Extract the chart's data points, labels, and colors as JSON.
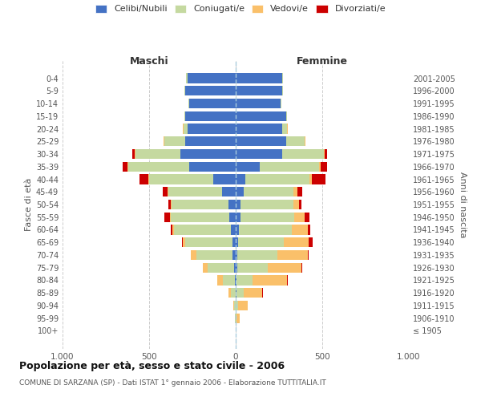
{
  "age_groups": [
    "0-4",
    "5-9",
    "10-14",
    "15-19",
    "20-24",
    "25-29",
    "30-34",
    "35-39",
    "40-44",
    "45-49",
    "50-54",
    "55-59",
    "60-64",
    "65-69",
    "70-74",
    "75-79",
    "80-84",
    "85-89",
    "90-94",
    "95-99",
    "100+"
  ],
  "birth_years": [
    "2001-2005",
    "1996-2000",
    "1991-1995",
    "1986-1990",
    "1981-1985",
    "1976-1980",
    "1971-1975",
    "1966-1970",
    "1961-1965",
    "1956-1960",
    "1951-1955",
    "1946-1950",
    "1941-1945",
    "1936-1940",
    "1931-1935",
    "1926-1930",
    "1921-1925",
    "1916-1920",
    "1911-1915",
    "1906-1910",
    "≤ 1905"
  ],
  "males": {
    "celibi": [
      280,
      290,
      270,
      290,
      280,
      290,
      320,
      270,
      130,
      80,
      40,
      35,
      28,
      20,
      18,
      8,
      5,
      2,
      0,
      0,
      0
    ],
    "coniugati": [
      5,
      5,
      5,
      5,
      20,
      120,
      260,
      350,
      370,
      310,
      330,
      340,
      330,
      270,
      210,
      155,
      70,
      25,
      8,
      3,
      0
    ],
    "vedovi": [
      0,
      0,
      0,
      0,
      5,
      5,
      5,
      5,
      5,
      5,
      5,
      5,
      8,
      15,
      30,
      25,
      30,
      15,
      5,
      2,
      0
    ],
    "divorziati": [
      0,
      0,
      0,
      0,
      0,
      0,
      10,
      30,
      50,
      25,
      15,
      30,
      8,
      5,
      0,
      0,
      0,
      0,
      0,
      0,
      0
    ]
  },
  "females": {
    "nubili": [
      270,
      270,
      260,
      290,
      270,
      290,
      270,
      140,
      55,
      45,
      30,
      28,
      20,
      15,
      10,
      8,
      5,
      3,
      2,
      0,
      0
    ],
    "coniugate": [
      5,
      5,
      5,
      5,
      25,
      110,
      240,
      340,
      370,
      290,
      305,
      310,
      305,
      265,
      230,
      175,
      90,
      45,
      12,
      5,
      0
    ],
    "vedove": [
      0,
      0,
      0,
      0,
      5,
      5,
      5,
      10,
      15,
      20,
      30,
      60,
      90,
      140,
      175,
      195,
      200,
      105,
      55,
      18,
      0
    ],
    "divorziate": [
      0,
      0,
      0,
      0,
      0,
      0,
      15,
      40,
      80,
      30,
      15,
      30,
      15,
      25,
      8,
      8,
      5,
      5,
      0,
      0,
      0
    ]
  },
  "colors": {
    "celibi": "#4472C4",
    "coniugati": "#C5D9A0",
    "vedovi": "#FAC06A",
    "divorziati": "#CC0000"
  },
  "xlim": [
    -1000,
    1000
  ],
  "xticks": [
    -1000,
    -500,
    0,
    500,
    1000
  ],
  "xticklabels": [
    "1.000",
    "500",
    "0",
    "500",
    "1.000"
  ],
  "title": "Popolazione per età, sesso e stato civile - 2006",
  "subtitle": "COMUNE DI SARZANA (SP) - Dati ISTAT 1° gennaio 2006 - Elaborazione TUTTITALIA.IT",
  "ylabel_left": "Fasce di età",
  "ylabel_right": "Anni di nascita",
  "label_maschi": "Maschi",
  "label_femmine": "Femmine",
  "legend_labels": [
    "Celibi/Nubili",
    "Coniugati/e",
    "Vedovi/e",
    "Divorziati/e"
  ],
  "background_color": "#FFFFFF",
  "grid_color": "#CCCCCC"
}
